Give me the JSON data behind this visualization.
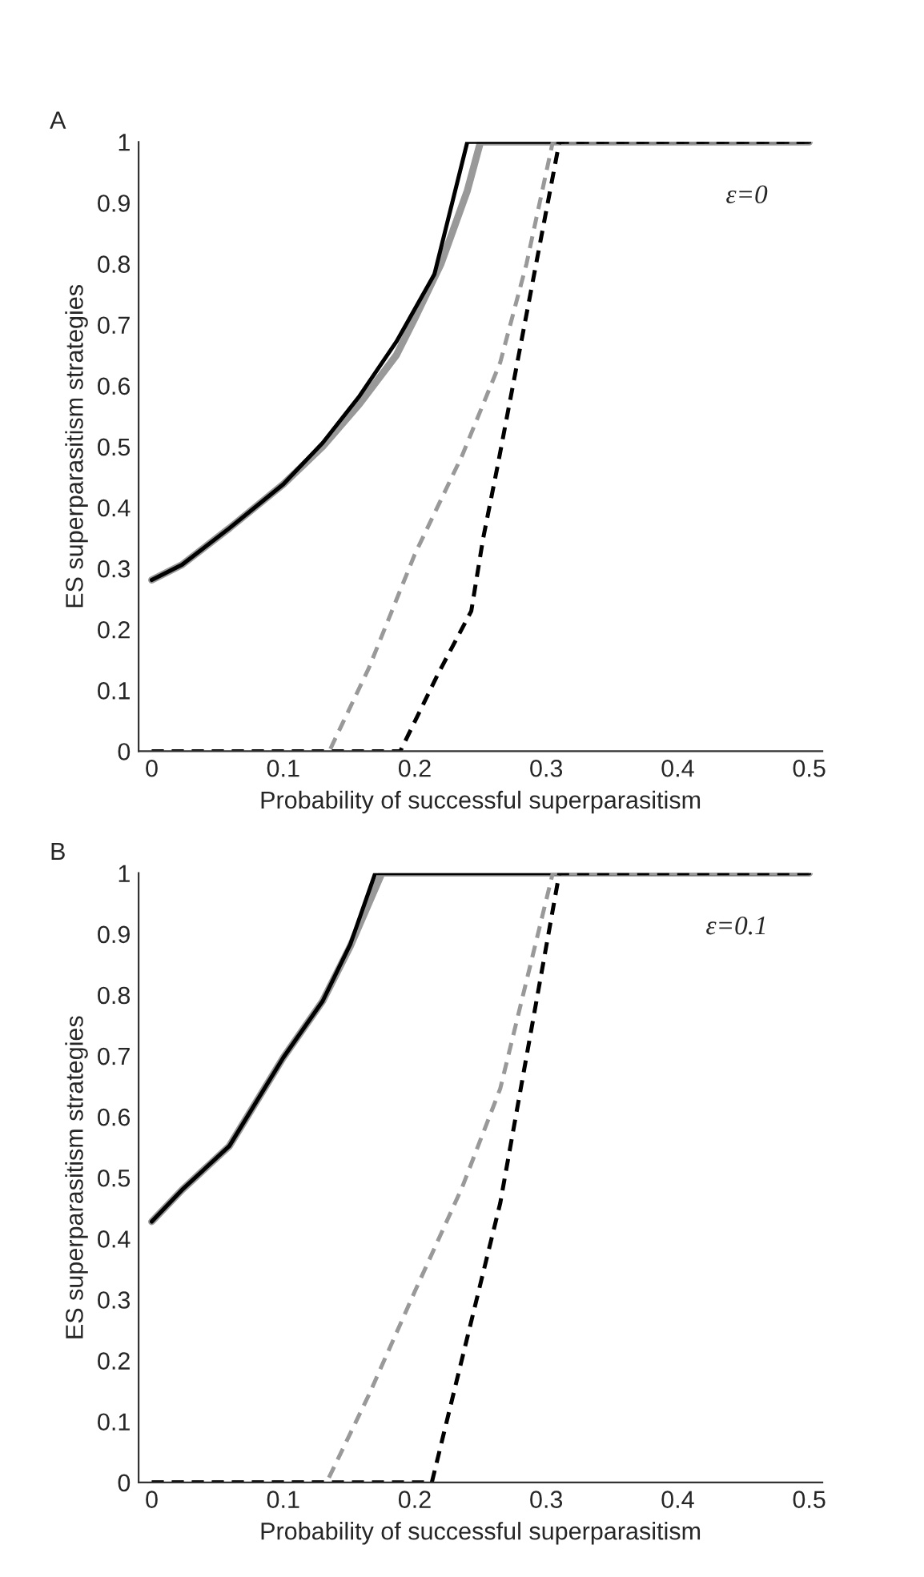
{
  "chart_data": [
    {
      "type": "line",
      "title": "A",
      "xlabel": "Probability of successful superparasitism",
      "ylabel": "ES superparasitism strategies",
      "annotations": [
        "ε=0"
      ],
      "xlim": [
        -0.01,
        0.51
      ],
      "ylim": [
        0,
        1
      ],
      "xticks": [
        0,
        0.1,
        0.2,
        0.3,
        0.4,
        0.5
      ],
      "yticks": [
        0,
        0.1,
        0.2,
        0.3,
        0.4,
        0.5,
        0.6,
        0.7,
        0.8,
        0.9,
        1
      ],
      "grid": false,
      "legend": false,
      "series": [
        {
          "color": "#999999",
          "line_style": "solid",
          "x": [
            0,
            0.023,
            0.059,
            0.1,
            0.13,
            0.158,
            0.186,
            0.2,
            0.22,
            0.24,
            0.25,
            0.5
          ],
          "values": [
            0.281,
            0.306,
            0.366,
            0.438,
            0.5,
            0.57,
            0.65,
            0.71,
            0.8,
            0.92,
            1,
            1
          ]
        },
        {
          "color": "#000000",
          "line_style": "solid",
          "x": [
            0,
            0.023,
            0.059,
            0.1,
            0.13,
            0.158,
            0.186,
            0.215,
            0.24,
            0.5
          ],
          "values": [
            0.281,
            0.306,
            0.366,
            0.438,
            0.506,
            0.583,
            0.672,
            0.783,
            1,
            1
          ]
        },
        {
          "color": "#999999",
          "line_style": "dashed",
          "x": [
            0,
            0.135,
            0.165,
            0.2,
            0.236,
            0.265,
            0.285,
            0.305,
            0.5
          ],
          "values": [
            0,
            0,
            0.136,
            0.323,
            0.485,
            0.638,
            0.8,
            1,
            1
          ]
        },
        {
          "color": "#000000",
          "line_style": "dashed",
          "x": [
            0,
            0.189,
            0.218,
            0.243,
            0.252,
            0.263,
            0.31,
            0.5
          ],
          "values": [
            0,
            0,
            0.128,
            0.23,
            0.349,
            0.468,
            1,
            1
          ]
        }
      ]
    },
    {
      "type": "line",
      "title": "B",
      "xlabel": "Probability of successful superparasitism",
      "ylabel": "ES superparasitism strategies",
      "annotations": [
        "ε=0.1"
      ],
      "xlim": [
        -0.01,
        0.51
      ],
      "ylim": [
        0,
        1
      ],
      "xticks": [
        0,
        0.1,
        0.2,
        0.3,
        0.4,
        0.5
      ],
      "yticks": [
        0,
        0.1,
        0.2,
        0.3,
        0.4,
        0.5,
        0.6,
        0.7,
        0.8,
        0.9,
        1
      ],
      "grid": false,
      "legend": false,
      "series": [
        {
          "color": "#999999",
          "line_style": "solid",
          "x": [
            0,
            0.023,
            0.059,
            0.1,
            0.13,
            0.151,
            0.175,
            0.5
          ],
          "values": [
            0.428,
            0.48,
            0.552,
            0.697,
            0.79,
            0.88,
            1,
            1
          ]
        },
        {
          "color": "#000000",
          "line_style": "solid",
          "x": [
            0,
            0.023,
            0.059,
            0.1,
            0.13,
            0.151,
            0.17,
            0.5
          ],
          "values": [
            0.428,
            0.48,
            0.552,
            0.697,
            0.79,
            0.883,
            1,
            1
          ]
        },
        {
          "color": "#999999",
          "line_style": "dashed",
          "x": [
            0,
            0.133,
            0.165,
            0.2,
            0.236,
            0.265,
            0.305,
            0.5
          ],
          "values": [
            0,
            0,
            0.143,
            0.313,
            0.484,
            0.646,
            1,
            1
          ]
        },
        {
          "color": "#000000",
          "line_style": "dashed",
          "x": [
            0,
            0.213,
            0.236,
            0.265,
            0.31,
            0.5
          ],
          "values": [
            0,
            0,
            0.203,
            0.458,
            1,
            1
          ]
        }
      ]
    }
  ]
}
